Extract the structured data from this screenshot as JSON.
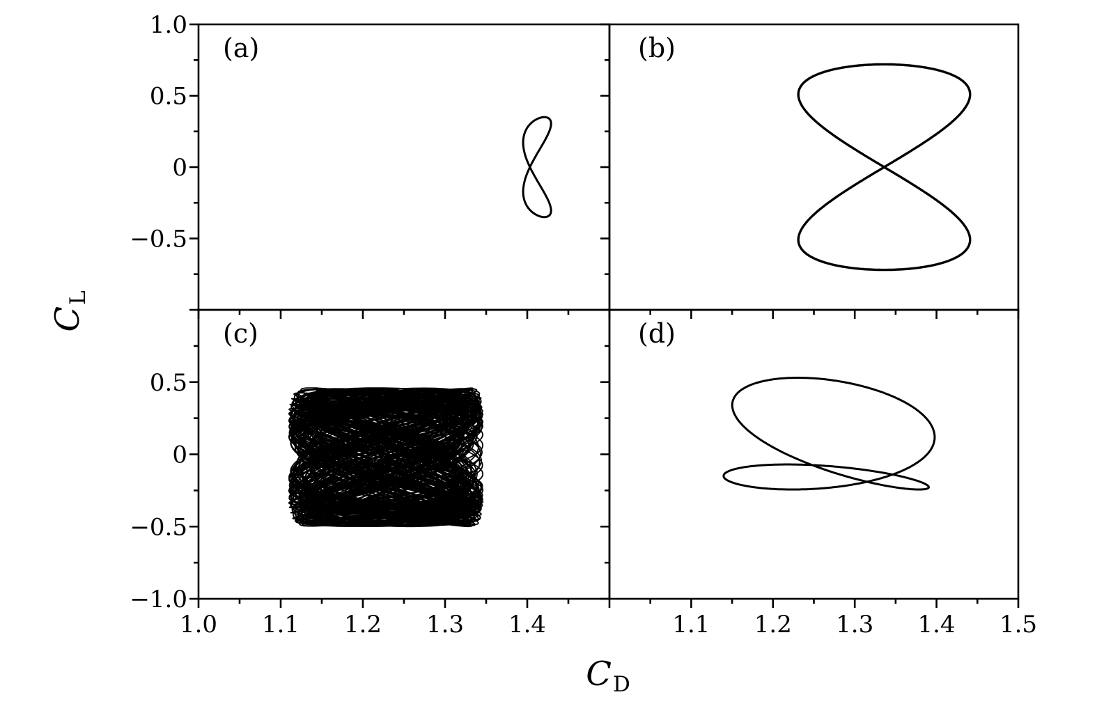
{
  "figure": {
    "background": "#ffffff",
    "line_color": "#000000",
    "xlabel_base": "C",
    "xlabel_sub": "D",
    "ylabel_base": "C",
    "ylabel_sub": "L"
  },
  "chart_data": [
    {
      "id": "a",
      "label": "(a)",
      "type": "line",
      "x_axis": {
        "label": "C_D",
        "range": [
          1.0,
          1.5
        ],
        "major": [
          1.0,
          1.1,
          1.2,
          1.3,
          1.4,
          1.5
        ],
        "minor": [
          1.05,
          1.15,
          1.25,
          1.35,
          1.45
        ],
        "tick_labels": []
      },
      "y_axis": {
        "label": "C_L",
        "range": [
          -1.0,
          1.0
        ],
        "major": [
          1.0,
          0.5,
          0.0,
          -0.5,
          -1.0
        ],
        "minor": [
          0.75,
          0.25,
          -0.25,
          -0.75
        ],
        "tick_labels": [
          {
            "v": 1.0,
            "t": "1.0"
          },
          {
            "v": 0.5,
            "t": "0.5"
          },
          {
            "v": 0.0,
            "t": "0"
          },
          {
            "v": -0.5,
            "t": "−0.5"
          }
        ]
      },
      "series": [
        {
          "name": "narrow figure-eight limit cycle",
          "model": "harmonic",
          "points": 720,
          "width": 3,
          "x0": 1.412,
          "y0": 0.0,
          "xh": [
            {
              "k": 2,
              "a": 0.017,
              "p": -2.6
            }
          ],
          "yh": [
            {
              "k": 1,
              "a": 0.35,
              "p": 0
            }
          ],
          "x_range": [
            1.395,
            1.429
          ],
          "y_range": [
            -0.35,
            0.35
          ],
          "crossing": [
            1.403,
            0.0
          ]
        }
      ]
    },
    {
      "id": "b",
      "label": "(b)",
      "type": "line",
      "x_axis": {
        "label": "C_D",
        "range": [
          1.0,
          1.5
        ],
        "major": [
          1.1,
          1.2,
          1.3,
          1.4,
          1.5
        ],
        "minor": [
          1.05,
          1.15,
          1.25,
          1.35,
          1.45
        ],
        "tick_labels": []
      },
      "y_axis": {
        "label": "C_L",
        "range": [
          -1.0,
          1.0
        ],
        "major": [
          1.0,
          0.5,
          0.0,
          -0.5,
          -1.0
        ],
        "minor": [
          0.75,
          0.25,
          -0.25,
          -0.75
        ],
        "tick_labels": []
      },
      "series": [
        {
          "name": "large figure-eight limit cycle",
          "model": "harmonic",
          "points": 720,
          "width": 3.4,
          "x0": 1.336,
          "y0": 0.0,
          "xh": [
            {
              "k": 2,
              "a": 0.105,
              "p": 0
            }
          ],
          "yh": [
            {
              "k": 1,
              "a": 0.72,
              "p": 0
            }
          ],
          "x_range": [
            1.231,
            1.441
          ],
          "y_range": [
            -0.72,
            0.72
          ],
          "crossing": [
            1.336,
            0.0
          ]
        }
      ]
    },
    {
      "id": "c",
      "label": "(c)",
      "type": "line",
      "x_axis": {
        "label": "C_D",
        "range": [
          1.0,
          1.5
        ],
        "major": [
          1.0,
          1.1,
          1.2,
          1.3,
          1.4,
          1.5
        ],
        "minor": [
          1.05,
          1.15,
          1.25,
          1.35,
          1.45
        ],
        "tick_labels": [
          {
            "v": 1.0,
            "t": "1.0"
          },
          {
            "v": 1.1,
            "t": "1.1"
          },
          {
            "v": 1.2,
            "t": "1.2"
          },
          {
            "v": 1.3,
            "t": "1.3"
          },
          {
            "v": 1.4,
            "t": "1.4"
          }
        ]
      },
      "y_axis": {
        "label": "C_L",
        "range": [
          -1.0,
          1.0
        ],
        "major": [
          0.5,
          0.0,
          -0.5,
          -1.0
        ],
        "minor": [
          0.75,
          0.25,
          -0.25,
          -0.75
        ],
        "tick_labels": [
          {
            "v": 0.5,
            "t": "0.5"
          },
          {
            "v": 0.0,
            "t": "0"
          },
          {
            "v": -0.5,
            "t": "−0.5"
          },
          {
            "v": -1.0,
            "t": "−1.0"
          }
        ]
      },
      "series": [
        {
          "name": "chaotic attractor band",
          "model": "modulated",
          "width": 1.8,
          "cycles": 60,
          "per": 160,
          "x0": 1.228,
          "y0": -0.02,
          "bx0": 0.105,
          "bx1": 0.013,
          "wbx": 0.0437,
          "pbx": 0,
          "mph": 0.95,
          "wph": 0.0731,
          "pph": 0,
          "ay0": 0.405,
          "ay1": 0.075,
          "way": 0.0893,
          "pay": 1.3,
          "ymph": 0.25,
          "wyp": 0.0567,
          "x_range": [
            1.11,
            1.346
          ],
          "y_range": [
            -0.5,
            0.46
          ]
        },
        {
          "name": "chaotic attractor band fill",
          "model": "modulated",
          "width": 1.8,
          "cycles": 60,
          "per": 160,
          "x0": 1.228,
          "y0": -0.02,
          "bx0": 0.1,
          "bx1": 0.016,
          "wbx": 0.0521,
          "pbx": 2.1,
          "mph": 0.7,
          "wph": 0.0613,
          "pph": 2.6,
          "ay0": 0.415,
          "ay1": 0.06,
          "way": 0.0787,
          "pay": 4.0,
          "ymph": 0.3,
          "wyp": 0.0641,
          "x_range": [
            1.112,
            1.344
          ],
          "y_range": [
            -0.5,
            0.46
          ]
        }
      ]
    },
    {
      "id": "d",
      "label": "(d)",
      "type": "line",
      "x_axis": {
        "label": "C_D",
        "range": [
          1.0,
          1.5
        ],
        "major": [
          1.1,
          1.2,
          1.3,
          1.4,
          1.5
        ],
        "minor": [
          1.05,
          1.15,
          1.25,
          1.35,
          1.45
        ],
        "tick_labels": [
          {
            "v": 1.1,
            "t": "1.1"
          },
          {
            "v": 1.2,
            "t": "1.2"
          },
          {
            "v": 1.3,
            "t": "1.3"
          },
          {
            "v": 1.4,
            "t": "1.4"
          },
          {
            "v": 1.5,
            "t": "1.5"
          }
        ]
      },
      "y_axis": {
        "label": "C_L",
        "range": [
          -1.0,
          1.0
        ],
        "major": [
          0.5,
          0.0,
          -0.5,
          -1.0
        ],
        "minor": [
          0.75,
          0.25,
          -0.25,
          -0.75
        ],
        "tick_labels": []
      },
      "series": [
        {
          "name": "asymmetric limit cycle with large upper loop and small lower lobes",
          "model": "harmonic",
          "points": 720,
          "width": 3,
          "x0": 1.2695,
          "y0": 0.02,
          "xh": [
            {
              "k": 1,
              "a": 0.0064,
              "p": 0
            },
            {
              "k": 2,
              "a": 0.1246,
              "p": 0.374
            }
          ],
          "yh": [
            {
              "k": 1,
              "a": 0.3,
              "p": 0
            },
            {
              "k": 2,
              "a": 0.21,
              "p": -1.5708
            }
          ],
          "x_range": [
            1.145,
            1.39
          ],
          "y_range": [
            -0.245,
            0.53
          ],
          "crossing": [
            1.315,
            -0.19
          ]
        }
      ]
    }
  ]
}
